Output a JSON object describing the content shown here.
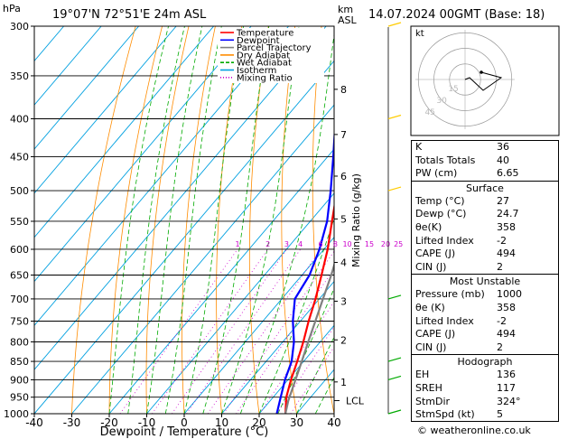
{
  "header": {
    "hpa_label": "hPa",
    "location": "19°07'N  72°51'E  24m  ASL",
    "km_label": "km",
    "asl_label": "ASL",
    "date": "14.07.2024  00GMT  (Base: 18)"
  },
  "chart_data": {
    "type": "line",
    "title": "19°07'N  72°51'E  24m  ASL",
    "xlabel": "Dewpoint / Temperature (°C)",
    "ylabel": "hPa",
    "y2label": "Mixing Ratio (g/kg)",
    "xlim": [
      -40,
      40
    ],
    "ylim": [
      1000,
      300
    ],
    "x_ticks": [
      -40,
      -30,
      -20,
      -10,
      0,
      10,
      20,
      30,
      40
    ],
    "pressure_levels": [
      300,
      350,
      400,
      450,
      500,
      550,
      600,
      650,
      700,
      750,
      800,
      850,
      900,
      950,
      1000
    ],
    "km_ticks": [
      {
        "km": 1,
        "p": 906
      },
      {
        "km": 2,
        "p": 795
      },
      {
        "km": 3,
        "p": 705
      },
      {
        "km": 4,
        "p": 625
      },
      {
        "km": 5,
        "p": 546
      },
      {
        "km": 6,
        "p": 478
      },
      {
        "km": 7,
        "p": 420
      },
      {
        "km": 8,
        "p": 365
      }
    ],
    "lcl": {
      "label": "LCL",
      "p": 960
    },
    "mixing_ratio_labels": [
      "1",
      "2",
      "3",
      "4",
      "6",
      "8",
      "10",
      "15",
      "20",
      "25"
    ],
    "legend": [
      "Temperature",
      "Dewpoint",
      "Parcel Trajectory",
      "Dry Adiabat",
      "Wet Adiabat",
      "Isotherm",
      "Mixing Ratio"
    ],
    "series": [
      {
        "name": "Temperature",
        "color": "#ff0000",
        "p": [
          1000,
          950,
          900,
          850,
          800,
          750,
          700,
          650,
          600,
          550,
          500,
          450,
          400,
          350
        ],
        "t": [
          27,
          23.5,
          20.8,
          18.3,
          15.5,
          12.2,
          9,
          5.2,
          1,
          -4.2,
          -9.8,
          -16.2,
          -24.5,
          -35
        ]
      },
      {
        "name": "Dewpoint",
        "color": "#0000ff",
        "p": [
          1000,
          950,
          900,
          850,
          800,
          750,
          700,
          650,
          600,
          550,
          500,
          450,
          400,
          350
        ],
        "t": [
          24.7,
          22,
          19.2,
          16.8,
          13,
          8,
          3.5,
          2,
          -1.2,
          -5.5,
          -11.5,
          -18.5,
          -26.5,
          -36
        ]
      },
      {
        "name": "Parcel Trajectory",
        "color": "#808080",
        "p": [
          1000,
          960,
          900,
          850,
          800,
          750,
          700,
          650,
          600,
          550,
          500,
          450,
          400,
          350
        ],
        "t": [
          27,
          24.8,
          22,
          19.5,
          16.8,
          14,
          11,
          7.8,
          4,
          -0.5,
          -5.8,
          -12,
          -19.5,
          -29
        ]
      }
    ]
  },
  "hodograph": {
    "label": "kt",
    "ring_labels": [
      "45",
      "30",
      "15"
    ]
  },
  "indices": [
    {
      "label": "K",
      "value": "36"
    },
    {
      "label": "Totals Totals",
      "value": "40"
    },
    {
      "label": "PW (cm)",
      "value": "6.65"
    }
  ],
  "surface": {
    "title": "Surface",
    "rows": [
      {
        "label": "Temp (°C)",
        "value": "27"
      },
      {
        "label": "Dewp (°C)",
        "value": "24.7"
      },
      {
        "label": "θe(K)",
        "value": "358"
      },
      {
        "label": "Lifted Index",
        "value": "-2"
      },
      {
        "label": "CAPE (J)",
        "value": "494"
      },
      {
        "label": "CIN (J)",
        "value": "2"
      }
    ]
  },
  "most_unstable": {
    "title": "Most Unstable",
    "rows": [
      {
        "label": "Pressure (mb)",
        "value": "1000"
      },
      {
        "label": "θe (K)",
        "value": "358"
      },
      {
        "label": "Lifted Index",
        "value": "-2"
      },
      {
        "label": "CAPE (J)",
        "value": "494"
      },
      {
        "label": "CIN (J)",
        "value": "2"
      }
    ]
  },
  "hodograph_table": {
    "title": "Hodograph",
    "rows": [
      {
        "label": "EH",
        "value": "136"
      },
      {
        "label": "SREH",
        "value": "117"
      },
      {
        "label": "StmDir",
        "value": "324°"
      },
      {
        "label": "StmSpd (kt)",
        "value": "5"
      }
    ]
  },
  "footer": "© weatheronline.co.uk",
  "colors": {
    "temperature": "#ff0000",
    "dewpoint": "#0000ff",
    "parcel": "#808080",
    "dry_adiabat": "#ff8c00",
    "wet_adiabat": "#00aa00",
    "isotherm": "#00a0e0",
    "mixing_ratio": "#cc00cc",
    "wind": "#ffcc00"
  }
}
